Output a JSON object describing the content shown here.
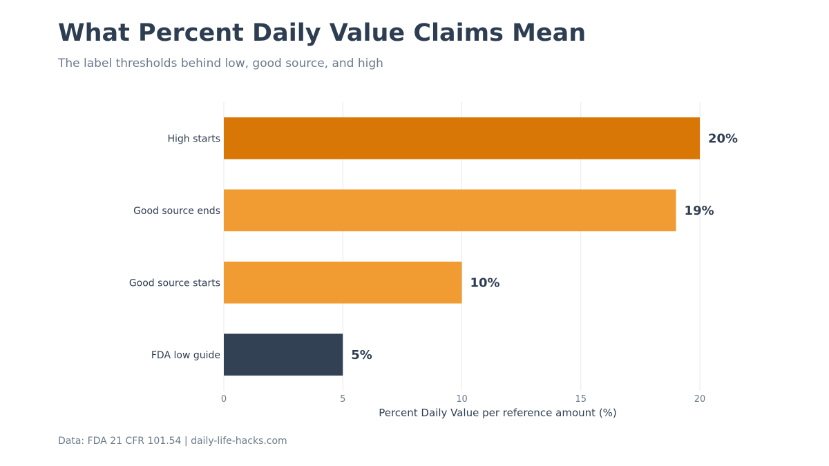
{
  "header": {
    "title": "What Percent Daily Value Claims Mean",
    "subtitle": "The label thresholds behind low, good source, and high"
  },
  "footer": {
    "source": "Data: FDA 21 CFR 101.54 | daily-life-hacks.com"
  },
  "chart_data": {
    "type": "bar",
    "orientation": "horizontal",
    "title": "What Percent Daily Value Claims Mean",
    "subtitle": "The label thresholds behind low, good source, and high",
    "xlabel": "Percent Daily Value per reference amount (%)",
    "ylabel": "",
    "categories": [
      "High starts",
      "Good source ends",
      "Good source starts",
      "FDA low guide"
    ],
    "values": [
      20,
      19,
      10,
      5
    ],
    "value_labels": [
      "20%",
      "19%",
      "10%",
      "5%"
    ],
    "colors": [
      "#d97706",
      "#f09c33",
      "#f09c33",
      "#324154"
    ],
    "xlim": [
      0,
      20
    ],
    "xticks": [
      0,
      5,
      10,
      15,
      20
    ],
    "grid": true
  }
}
